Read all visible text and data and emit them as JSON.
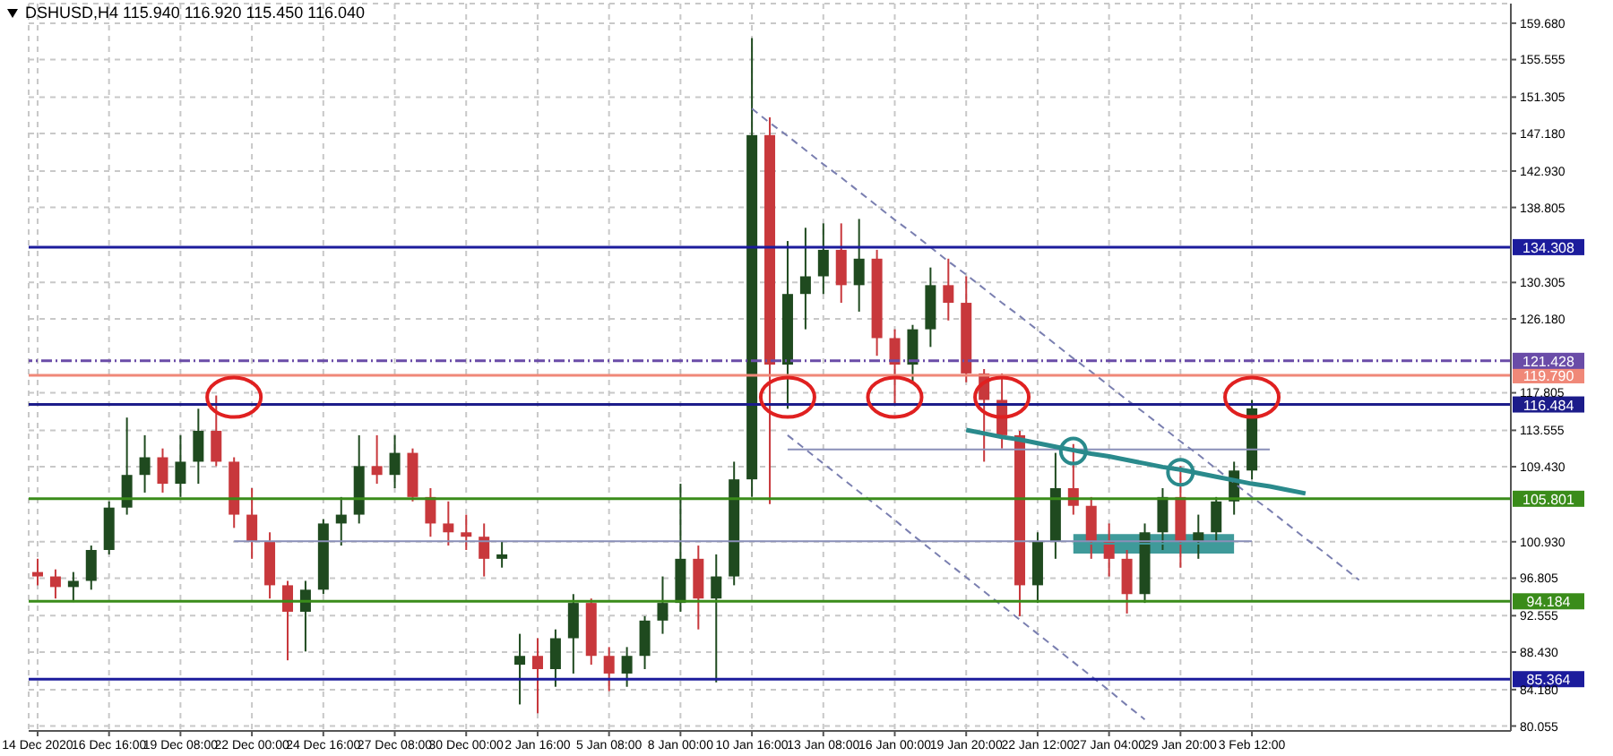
{
  "chart_data": {
    "type": "candlestick",
    "title": "DSHUSD,H4  115.940 116.920 115.450 116.040",
    "categories": [
      "14 Dec 2020",
      null,
      null,
      null,
      "16 Dec 16:00",
      null,
      null,
      null,
      "19 Dec 08:00",
      null,
      null,
      null,
      "22 Dec 00:00",
      null,
      null,
      null,
      "24 Dec 16:00",
      null,
      null,
      null,
      "27 Dec 08:00",
      null,
      null,
      null,
      "30 Dec 00:00",
      null,
      null,
      null,
      "2 Jan 16:00",
      null,
      null,
      null,
      "5 Jan 08:00",
      null,
      null,
      null,
      "8 Jan 00:00",
      null,
      null,
      null,
      "10 Jan 16:00",
      null,
      null,
      null,
      "13 Jan 08:00",
      null,
      null,
      null,
      "16 Jan 00:00",
      null,
      null,
      null,
      "19 Jan 20:00",
      null,
      null,
      null,
      "22 Jan 12:00",
      null,
      null,
      null,
      "27 Jan 04:00",
      null,
      null,
      null,
      "29 Jan 20:00",
      null,
      null,
      null,
      "3 Feb 12:00",
      null,
      null,
      null,
      null,
      null,
      null,
      null,
      null,
      null,
      null,
      null,
      null,
      null,
      null
    ],
    "ohlc": [
      [
        97.5,
        99.0,
        96.0,
        97.0
      ],
      [
        97.0,
        97.8,
        94.5,
        95.8
      ],
      [
        95.8,
        97.5,
        94.1,
        96.5
      ],
      [
        96.5,
        100.5,
        95.5,
        100.0
      ],
      [
        100.0,
        105.5,
        99.5,
        104.8
      ],
      [
        104.8,
        115.0,
        104.0,
        108.5
      ],
      [
        108.5,
        113.0,
        106.5,
        110.5
      ],
      [
        110.5,
        111.5,
        106.5,
        107.5
      ],
      [
        107.5,
        113.0,
        106.0,
        110.0
      ],
      [
        110.0,
        116.0,
        107.5,
        113.5
      ],
      [
        113.5,
        117.5,
        109.5,
        110.0
      ],
      [
        110.0,
        110.5,
        102.5,
        104.0
      ],
      [
        104.0,
        107.0,
        99.0,
        101.0
      ],
      [
        101.0,
        102.0,
        94.5,
        96.0
      ],
      [
        96.0,
        96.5,
        87.5,
        93.0
      ],
      [
        93.0,
        96.5,
        88.5,
        95.5
      ],
      [
        95.5,
        103.5,
        95.0,
        103.0
      ],
      [
        103.0,
        106.0,
        100.5,
        104.0
      ],
      [
        104.0,
        113.0,
        103.0,
        109.5
      ],
      [
        109.5,
        113.0,
        107.5,
        108.5
      ],
      [
        108.5,
        113.0,
        107.0,
        111.0
      ],
      [
        111.0,
        111.5,
        105.5,
        106.0
      ],
      [
        106.0,
        107.0,
        101.5,
        103.0
      ],
      [
        103.0,
        105.5,
        100.5,
        102.0
      ],
      [
        102.0,
        104.0,
        100.0,
        101.5
      ],
      [
        101.5,
        103.0,
        97.0,
        99.0
      ],
      [
        99.0,
        101.0,
        98.0,
        99.5
      ],
      [
        87.0,
        90.5,
        82.5,
        88.0
      ],
      [
        88.0,
        90.0,
        81.5,
        86.5
      ],
      [
        86.5,
        91.0,
        84.5,
        90.0
      ],
      [
        90.0,
        95.0,
        86.0,
        94.0
      ],
      [
        94.0,
        94.5,
        87.0,
        88.0
      ],
      [
        88.0,
        89.0,
        84.0,
        86.0
      ],
      [
        86.0,
        89.0,
        84.5,
        88.0
      ],
      [
        88.0,
        92.5,
        86.5,
        92.0
      ],
      [
        92.0,
        97.0,
        90.5,
        94.0
      ],
      [
        94.0,
        107.5,
        93.0,
        99.0
      ],
      [
        99.0,
        100.5,
        91.0,
        94.5
      ],
      [
        94.5,
        99.5,
        85.0,
        97.0
      ],
      [
        97.0,
        110.0,
        96.0,
        108.0
      ],
      [
        108.0,
        158.0,
        106.0,
        147.0
      ],
      [
        147.0,
        149.0,
        105.2,
        121.0
      ],
      [
        121.0,
        135.0,
        116.0,
        129.0
      ],
      [
        129.0,
        136.5,
        125.0,
        131.0
      ],
      [
        131.0,
        137.0,
        129.0,
        134.0
      ],
      [
        134.0,
        137.0,
        128.0,
        130.0
      ],
      [
        130.0,
        137.5,
        127.0,
        133.0
      ],
      [
        133.0,
        134.0,
        122.0,
        124.0
      ],
      [
        124.0,
        125.0,
        116.5,
        121.0
      ],
      [
        121.0,
        125.5,
        119.0,
        125.0
      ],
      [
        125.0,
        132.0,
        123.0,
        130.0
      ],
      [
        130.0,
        133.0,
        126.0,
        128.0
      ],
      [
        128.0,
        131.0,
        119.0,
        120.0
      ],
      [
        120.0,
        120.5,
        110.0,
        117.0
      ],
      [
        117.0,
        120.0,
        111.5,
        113.0
      ],
      [
        113.0,
        113.5,
        92.5,
        96.0
      ],
      [
        96.0,
        102.0,
        94.0,
        101.0
      ],
      [
        101.0,
        111.0,
        99.0,
        107.0
      ],
      [
        107.0,
        112.0,
        104.0,
        105.0
      ],
      [
        105.0,
        106.0,
        99.0,
        101.0
      ],
      [
        101.0,
        103.0,
        97.0,
        99.0
      ],
      [
        99.0,
        100.0,
        92.8,
        95.0
      ],
      [
        95.0,
        103.0,
        94.0,
        102.0
      ],
      [
        102.0,
        107.0,
        100.0,
        106.0
      ],
      [
        106.0,
        109.5,
        98.0,
        101.0
      ],
      [
        101.0,
        104.0,
        99.0,
        102.0
      ],
      [
        102.0,
        106.0,
        101.0,
        105.5
      ],
      [
        105.5,
        110.0,
        104.0,
        109.0
      ],
      [
        109.0,
        117.0,
        108.0,
        116.04
      ],
      null,
      null,
      null,
      null,
      null,
      null,
      null,
      null,
      null,
      null,
      null,
      null,
      null,
      null
    ],
    "colors": [
      "#c8383c",
      "#c8383c",
      "#1f4a1f",
      "#1f4a1f",
      "#1f4a1f",
      "#1f4a1f",
      "#1f4a1f",
      "#c8383c",
      "#1f4a1f",
      "#1f4a1f",
      "#c8383c",
      "#c8383c",
      "#c8383c",
      "#c8383c",
      "#c8383c",
      "#1f4a1f",
      "#1f4a1f",
      "#1f4a1f",
      "#1f4a1f",
      "#c8383c",
      "#1f4a1f",
      "#c8383c",
      "#c8383c",
      "#c8383c",
      "#c8383c",
      "#c8383c",
      "#1f4a1f",
      "#1f4a1f",
      "#c8383c",
      "#1f4a1f",
      "#1f4a1f",
      "#c8383c",
      "#c8383c",
      "#1f4a1f",
      "#1f4a1f",
      "#1f4a1f",
      "#1f4a1f",
      "#c8383c",
      "#1f4a1f",
      "#1f4a1f",
      "#1f4a1f",
      "#c8383c",
      "#1f4a1f",
      "#1f4a1f",
      "#1f4a1f",
      "#c8383c",
      "#1f4a1f",
      "#c8383c",
      "#c8383c",
      "#1f4a1f",
      "#1f4a1f",
      "#c8383c",
      "#c8383c",
      "#c8383c",
      "#c8383c",
      "#c8383c",
      "#1f4a1f",
      "#1f4a1f",
      "#c8383c",
      "#c8383c",
      "#c8383c",
      "#c8383c",
      "#1f4a1f",
      "#1f4a1f",
      "#c8383c",
      "#1f4a1f",
      "#1f4a1f",
      "#1f4a1f",
      "#1f4a1f",
      null,
      null,
      null,
      null,
      null,
      null,
      null,
      null,
      null,
      null,
      null,
      null,
      null,
      null
    ],
    "series": [
      {
        "type": "line",
        "color": "#8a8fb8",
        "values": [
          null,
          null,
          null,
          null,
          null,
          null,
          null,
          null,
          null,
          null,
          null,
          null,
          null,
          null,
          null,
          null,
          null,
          null,
          null,
          null,
          null,
          null,
          null,
          null,
          null,
          null,
          null,
          null,
          null,
          null,
          null,
          null,
          null,
          null,
          null,
          null,
          null,
          null,
          null,
          null,
          null,
          null,
          111.4,
          111.4,
          111.4,
          111.4,
          111.4,
          111.4,
          111.4,
          111.4,
          111.4,
          111.4,
          111.4,
          111.4,
          111.4,
          111.4,
          111.4,
          111.4,
          111.4,
          111.4,
          111.4,
          111.4,
          111.4,
          111.4,
          111.4,
          111.4,
          111.4,
          111.4,
          111.4,
          111.4,
          null,
          null,
          null,
          null,
          null,
          null,
          null,
          null,
          null,
          null,
          null,
          null,
          null
        ]
      },
      {
        "type": "line",
        "color": "#8a8fb8",
        "values": [
          null,
          null,
          null,
          null,
          null,
          null,
          null,
          null,
          null,
          null,
          null,
          101.0,
          101.0,
          101.0,
          101.0,
          101.0,
          101.0,
          101.0,
          101.0,
          101.0,
          101.0,
          101.0,
          101.0,
          101.0,
          101.0,
          101.0,
          101.0,
          101.0,
          101.0,
          101.0,
          101.0,
          101.0,
          101.0,
          101.0,
          101.0,
          101.0,
          101.0,
          101.0,
          101.0,
          101.0,
          101.0,
          101.0,
          101.0,
          101.0,
          101.0,
          101.0,
          101.0,
          101.0,
          101.0,
          101.0,
          101.0,
          101.0,
          101.0,
          101.0,
          101.0,
          101.0,
          101.0,
          101.0,
          101.0,
          101.0,
          101.0,
          101.0,
          101.0,
          101.0,
          101.0,
          101.0,
          101.0,
          101.0,
          101.0,
          null,
          null,
          null,
          null,
          null,
          null,
          null,
          null,
          null,
          null,
          null,
          null,
          null,
          null
        ]
      },
      {
        "type": "line",
        "color": "#7a7fb0",
        "line_style": "dashed",
        "values": [
          null,
          null,
          null,
          null,
          null,
          null,
          null,
          null,
          null,
          null,
          null,
          null,
          null,
          null,
          null,
          null,
          null,
          null,
          null,
          null,
          null,
          null,
          null,
          null,
          null,
          null,
          null,
          null,
          null,
          null,
          null,
          null,
          null,
          null,
          null,
          null,
          null,
          null,
          null,
          null,
          150.0,
          148.4,
          146.9,
          145.3,
          143.7,
          142.2,
          140.6,
          139.0,
          137.4,
          135.9,
          134.3,
          132.7,
          131.2,
          129.6,
          128.0,
          126.5,
          124.9,
          123.3,
          121.7,
          120.2,
          118.6,
          117.0,
          115.5,
          113.9,
          112.3,
          110.8,
          109.2,
          107.6,
          106.0,
          104.5,
          102.9,
          101.3,
          99.8,
          98.2,
          96.6,
          null,
          null,
          null,
          null,
          null,
          null,
          null,
          null
        ]
      },
      {
        "type": "line",
        "color": "#7a7fb0",
        "line_style": "dashed",
        "values": [
          null,
          null,
          null,
          null,
          null,
          null,
          null,
          null,
          null,
          null,
          null,
          null,
          null,
          null,
          null,
          null,
          null,
          null,
          null,
          null,
          null,
          null,
          null,
          null,
          null,
          null,
          null,
          null,
          null,
          null,
          null,
          null,
          null,
          null,
          null,
          null,
          null,
          null,
          null,
          null,
          null,
          null,
          113.0,
          111.4,
          109.8,
          108.2,
          106.6,
          105.0,
          103.4,
          101.7,
          100.1,
          98.5,
          96.9,
          95.3,
          93.7,
          92.1,
          90.5,
          88.9,
          87.3,
          85.7,
          84.1,
          82.4,
          80.8,
          null,
          null,
          null,
          null,
          null,
          null,
          null,
          null,
          null,
          null,
          null,
          null,
          null,
          null,
          null,
          null,
          null,
          null,
          null,
          null
        ]
      },
      {
        "type": "line",
        "color": "#2a8a8c",
        "values": [
          null,
          null,
          null,
          null,
          null,
          null,
          null,
          null,
          null,
          null,
          null,
          null,
          null,
          null,
          null,
          null,
          null,
          null,
          null,
          null,
          null,
          null,
          null,
          null,
          null,
          null,
          null,
          null,
          null,
          null,
          null,
          null,
          null,
          null,
          null,
          null,
          null,
          null,
          null,
          null,
          null,
          null,
          null,
          null,
          null,
          null,
          null,
          null,
          null,
          null,
          null,
          null,
          113.6,
          113.2,
          112.8,
          112.5,
          112.1,
          111.7,
          111.3,
          110.9,
          110.6,
          110.2,
          109.8,
          109.4,
          109.1,
          108.7,
          108.3,
          107.9,
          107.5,
          107.2,
          106.8,
          106.4,
          null,
          null,
          null,
          null,
          null,
          null,
          null,
          null,
          null,
          null,
          null
        ]
      },
      {
        "type": "line",
        "color": "#3f9a9a",
        "values": [
          null,
          null,
          null,
          null,
          null,
          null,
          null,
          null,
          null,
          null,
          null,
          null,
          null,
          null,
          null,
          null,
          null,
          null,
          null,
          null,
          null,
          null,
          null,
          null,
          null,
          null,
          null,
          null,
          null,
          null,
          null,
          null,
          null,
          null,
          null,
          null,
          null,
          null,
          null,
          null,
          null,
          null,
          null,
          null,
          null,
          null,
          null,
          null,
          null,
          null,
          null,
          null,
          null,
          null,
          null,
          null,
          null,
          null,
          100.7,
          100.7,
          100.7,
          100.7,
          100.7,
          100.7,
          100.7,
          100.7,
          100.7,
          100.7,
          null,
          null,
          null,
          null,
          null,
          null,
          null,
          null,
          null,
          null,
          null,
          null,
          null,
          null,
          null
        ],
        "lower": [
          null,
          null,
          null,
          null,
          null,
          null,
          null,
          null,
          null,
          null,
          null,
          null,
          null,
          null,
          null,
          null,
          null,
          null,
          null,
          null,
          null,
          null,
          null,
          null,
          null,
          null,
          null,
          null,
          null,
          null,
          null,
          null,
          null,
          null,
          null,
          null,
          null,
          null,
          null,
          null,
          null,
          null,
          null,
          null,
          null,
          null,
          null,
          null,
          null,
          null,
          null,
          null,
          null,
          null,
          null,
          null,
          null,
          null,
          99.6,
          99.6,
          99.6,
          99.6,
          99.6,
          99.6,
          99.6,
          99.6,
          99.6,
          99.6,
          null,
          null,
          null,
          null,
          null,
          null,
          null,
          null,
          null,
          null,
          null,
          null,
          null,
          null,
          null
        ],
        "upper": [
          null,
          null,
          null,
          null,
          null,
          null,
          null,
          null,
          null,
          null,
          null,
          null,
          null,
          null,
          null,
          null,
          null,
          null,
          null,
          null,
          null,
          null,
          null,
          null,
          null,
          null,
          null,
          null,
          null,
          null,
          null,
          null,
          null,
          null,
          null,
          null,
          null,
          null,
          null,
          null,
          null,
          null,
          null,
          null,
          null,
          null,
          null,
          null,
          null,
          null,
          null,
          null,
          null,
          null,
          null,
          null,
          null,
          null,
          101.8,
          101.8,
          101.8,
          101.8,
          101.8,
          101.8,
          101.8,
          101.8,
          101.8,
          101.8,
          null,
          null,
          null,
          null,
          null,
          null,
          null,
          null,
          null,
          null,
          null,
          null,
          null,
          null,
          null
        ]
      },
      {
        "type": "scatter",
        "color": "#e02020",
        "marker": "circle",
        "values": [
          null,
          null,
          null,
          null,
          null,
          null,
          null,
          null,
          null,
          null,
          null,
          117.3,
          null,
          null,
          null,
          null,
          null,
          null,
          null,
          null,
          null,
          null,
          null,
          null,
          null,
          null,
          null,
          null,
          null,
          null,
          null,
          null,
          null,
          null,
          null,
          null,
          null,
          null,
          null,
          null,
          null,
          null,
          117.3,
          null,
          null,
          null,
          null,
          null,
          117.3,
          null,
          null,
          null,
          null,
          null,
          117.3,
          null,
          null,
          null,
          null,
          null,
          null,
          null,
          null,
          null,
          null,
          null,
          null,
          null,
          117.3,
          null,
          null,
          null,
          null,
          null,
          null,
          null,
          null,
          null,
          null,
          null,
          null,
          null,
          null
        ]
      },
      {
        "type": "scatter",
        "color": "#2a8a8c",
        "marker": "circle",
        "values": [
          null,
          null,
          null,
          null,
          null,
          null,
          null,
          null,
          null,
          null,
          null,
          null,
          null,
          null,
          null,
          null,
          null,
          null,
          null,
          null,
          null,
          null,
          null,
          null,
          null,
          null,
          null,
          null,
          null,
          null,
          null,
          null,
          null,
          null,
          null,
          null,
          null,
          null,
          null,
          null,
          null,
          null,
          null,
          null,
          null,
          null,
          null,
          null,
          null,
          null,
          null,
          null,
          null,
          null,
          null,
          null,
          null,
          null,
          111.2,
          null,
          null,
          null,
          null,
          null,
          108.8,
          null,
          null,
          null,
          null,
          null,
          null,
          null,
          null,
          null,
          null,
          null,
          null,
          null,
          null,
          null,
          null,
          null,
          null
        ]
      }
    ],
    "ylim": [
      79.5,
      161.9
    ],
    "yticks": [
      {
        "value": 159.68,
        "label": "159.680"
      },
      {
        "value": 155.555,
        "label": "155.555"
      },
      {
        "value": 151.305,
        "label": "151.305"
      },
      {
        "value": 147.18,
        "label": "147.180"
      },
      {
        "value": 142.93,
        "label": "142.930"
      },
      {
        "value": 138.805,
        "label": "138.805"
      },
      {
        "value": 130.305,
        "label": "130.305"
      },
      {
        "value": 126.18,
        "label": "126.180"
      },
      {
        "value": 117.805,
        "label": "117.805"
      },
      {
        "value": 113.555,
        "label": "113.555"
      },
      {
        "value": 109.43,
        "label": "109.430"
      },
      {
        "value": 100.93,
        "label": "100.930"
      },
      {
        "value": 96.805,
        "label": "96.805"
      },
      {
        "value": 92.555,
        "label": "92.555"
      },
      {
        "value": 88.43,
        "label": "88.430"
      },
      {
        "value": 84.18,
        "label": "84.180"
      },
      {
        "value": 80.055,
        "label": "80.055"
      }
    ],
    "ref_lines": [
      {
        "axis": "y",
        "value": 134.308,
        "label": "134.308",
        "color": "#1c1c9c"
      },
      {
        "axis": "y",
        "value": 119.79,
        "label": "119.790",
        "color": "#f08878"
      },
      {
        "axis": "y",
        "value": 121.428,
        "label": "121.428",
        "color": "#6a4ca8",
        "line_style": "dashed"
      },
      {
        "axis": "y",
        "value": 116.484,
        "label": "116.484",
        "color": "#1c1c8a"
      },
      {
        "axis": "y",
        "value": 105.801,
        "label": "105.801",
        "color": "#3a8c1a"
      },
      {
        "axis": "y",
        "value": 94.184,
        "label": "94.184",
        "color": "#3a8c1a"
      },
      {
        "axis": "y",
        "value": 85.364,
        "label": "85.364",
        "color": "#1c1c9c"
      }
    ],
    "grid": true
  }
}
